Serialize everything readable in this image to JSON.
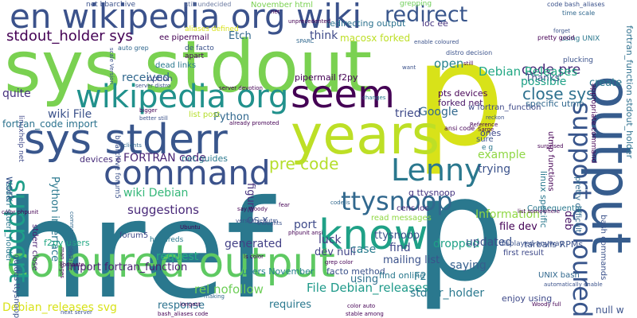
{
  "words": [
    {
      "text": "href",
      "color": "#2a788e"
    },
    {
      "text": "p",
      "color": "#d8e219"
    },
    {
      "text": "p",
      "color": "#2a788e"
    },
    {
      "text": "sys stdout",
      "color": "#7ad151"
    },
    {
      "text": "years",
      "color": "#bddf26"
    },
    {
      "text": "en wikipedia org wiki",
      "color": "#3b528b"
    },
    {
      "text": "output",
      "color": "#365c8d"
    },
    {
      "text": "coloured output",
      "color": "#5ec962"
    },
    {
      "text": "sys stderr",
      "color": "#39568c"
    },
    {
      "text": "command",
      "color": "#3b528b"
    },
    {
      "text": "wikipedia org",
      "color": "#21918c"
    },
    {
      "text": "seem",
      "color": "#440154"
    },
    {
      "text": "know",
      "color": "#1fa187"
    },
    {
      "text": "Lenny",
      "color": "#2a788e"
    },
    {
      "text": "support coloured",
      "color": "#39568c"
    },
    {
      "text": "ttysnoop",
      "color": "#31688e"
    },
    {
      "text": "redirect",
      "color": "#39568c"
    },
    {
      "text": "support",
      "color": "#1f9e89"
    },
    {
      "text": "stdout_holder sys",
      "color": "#440154"
    },
    {
      "text": "code pre",
      "color": "#482878"
    },
    {
      "text": "close sys",
      "color": "#2d708e"
    },
    {
      "text": "pre code",
      "color": "#b5de2b"
    },
    {
      "text": "Etch",
      "color": "#31688e"
    },
    {
      "text": "Debian Releases",
      "color": "#22a884"
    },
    {
      "text": "create",
      "color": "#2a788e"
    },
    {
      "text": "think",
      "color": "#3e4a89"
    },
    {
      "text": "received",
      "color": "#31688e"
    },
    {
      "text": "open",
      "color": "#26828e"
    },
    {
      "text": "Thanks",
      "color": "#3e4989"
    },
    {
      "text": "possible",
      "color": "#1fa187"
    },
    {
      "text": "pts devices",
      "color": "#440154"
    },
    {
      "text": "forked net",
      "color": "#471365"
    },
    {
      "text": "quite",
      "color": "#46327e"
    },
    {
      "text": "wiki File",
      "color": "#3b528b"
    },
    {
      "text": "Python",
      "color": "#31688e"
    },
    {
      "text": "fortran_code import",
      "color": "#2c728e"
    },
    {
      "text": "FORTRAN code",
      "color": "#482475"
    },
    {
      "text": "Google",
      "color": "#31688e"
    },
    {
      "text": "tried",
      "color": "#3e4989"
    },
    {
      "text": "wiki Debian",
      "color": "#35b779"
    },
    {
      "text": "suggestions",
      "color": "#482878"
    },
    {
      "text": "trying",
      "color": "#3b528b"
    },
    {
      "text": "example",
      "color": "#8fd744"
    },
    {
      "text": "Python interface",
      "color": "#2a788e"
    },
    {
      "text": "figure",
      "color": "#46327e"
    },
    {
      "text": "work",
      "color": "#39568c"
    },
    {
      "text": "devices e",
      "color": "#472d7b"
    },
    {
      "text": "generated",
      "color": "#424086"
    },
    {
      "text": "port",
      "color": "#3e4a89"
    },
    {
      "text": "luck",
      "color": "#443983"
    },
    {
      "text": "request",
      "color": "#26ad81"
    },
    {
      "text": "import fortran_function",
      "color": "#481f70"
    },
    {
      "text": "users November",
      "color": "#277f8e"
    },
    {
      "text": "facto method",
      "color": "#3b528b"
    },
    {
      "text": "rel nofollow",
      "color": "#6ece58"
    },
    {
      "text": "File Debian_releases",
      "color": "#1f9a8a"
    },
    {
      "text": "requires",
      "color": "#2a788e"
    },
    {
      "text": "response",
      "color": "#2c728e"
    },
    {
      "text": "Debian_releases svg",
      "color": "#d8e219"
    },
    {
      "text": "stderr_holder",
      "color": "#2a788e"
    },
    {
      "text": "dropped",
      "color": "#1fa187"
    },
    {
      "text": "saying",
      "color": "#355f8d"
    },
    {
      "text": "updated",
      "color": "#3b528b"
    },
    {
      "text": "Information",
      "color": "#8fd744"
    },
    {
      "text": "file dev",
      "color": "#450457"
    },
    {
      "text": "find",
      "color": "#3e4989"
    },
    {
      "text": "case",
      "color": "#287c8e"
    },
    {
      "text": "dev null",
      "color": "#414487"
    },
    {
      "text": "mailing list",
      "color": "#3b528b"
    },
    {
      "text": "find online",
      "color": "#2a788e"
    },
    {
      "text": "using",
      "color": "#2d708e"
    },
    {
      "text": "F2PY",
      "color": "#2a788e"
    },
    {
      "text": "null w",
      "color": "#3b528b"
    },
    {
      "text": "deb",
      "color": "#471365"
    },
    {
      "text": "ttysnoop",
      "color": "#3b528b"
    },
    {
      "text": "g ttysnoop",
      "color": "#453581"
    },
    {
      "text": "fortran_function stdout_holder",
      "color": "#2d708e"
    },
    {
      "text": "specific utmp",
      "color": "#31688e"
    },
    {
      "text": "w fortran_function",
      "color": "#3e4989"
    },
    {
      "text": "f2py users",
      "color": "#22a884"
    },
    {
      "text": "net guides",
      "color": "#2a788e"
    },
    {
      "text": "cens ioc",
      "color": "#482878"
    },
    {
      "text": "ioc ee",
      "color": "#46337f"
    },
    {
      "text": "macosx forked",
      "color": "#bddf26"
    },
    {
      "text": "redirecting output",
      "color": "#2c728e"
    },
    {
      "text": "pipermail f2py",
      "color": "#440154"
    },
    {
      "text": "OS X",
      "color": "#3b528b"
    },
    {
      "text": "tarballs RPMs",
      "color": "#3b528b"
    },
    {
      "text": "read messages",
      "color": "#8fd744"
    },
    {
      "text": "first result",
      "color": "#3e4989"
    },
    {
      "text": "displayed anyway",
      "color": "#3b528b"
    },
    {
      "text": "UNIX bash",
      "color": "#31688e"
    },
    {
      "text": "enjoy using",
      "color": "#3e4989"
    },
    {
      "text": "November html",
      "color": "#7ad151"
    },
    {
      "text": "ee pipermail",
      "color": "#440154"
    },
    {
      "text": "dead links",
      "color": "#2a788e"
    },
    {
      "text": "option",
      "color": "#3e4989"
    },
    {
      "text": "list post",
      "color": "#b5de2b"
    },
    {
      "text": "forum5",
      "color": "#3e4989"
    },
    {
      "text": "guides ttysnoop",
      "color": "#3b528b"
    },
    {
      "text": "stderr close",
      "color": "#481f70"
    },
    {
      "text": "stderr stderr_holder",
      "color": "#2a788e"
    },
    {
      "text": "linuxhelp net",
      "color": "#3e4989"
    },
    {
      "text": "bbarchive forum5",
      "color": "#3b528b"
    },
    {
      "text": "hundreds",
      "color": "#2a788e"
    },
    {
      "text": "sure",
      "color": "#3b528b"
    },
    {
      "text": "linux specific",
      "color": "#2a788e"
    },
    {
      "text": "pretty difficult",
      "color": "#31688e"
    },
    {
      "text": "utmp functions",
      "color": "#440154"
    },
    {
      "text": "bash commands",
      "color": "#3b528b"
    },
    {
      "text": "appropriate command",
      "color": "#440154"
    },
    {
      "text": "Consequently",
      "color": "#2a788e"
    },
    {
      "text": "net bbarchive",
      "color": "#3b528b"
    },
    {
      "text": "still undecided",
      "color": "#6b7aa0"
    },
    {
      "text": "grepping",
      "color": "#6ece58"
    },
    {
      "text": "code bash_aliases",
      "color": "#3b528b"
    },
    {
      "text": "time scale",
      "color": "#31688e"
    },
    {
      "text": "plucking",
      "color": "#3b528b"
    },
    {
      "text": "using UNIX",
      "color": "#2a788e"
    },
    {
      "text": "pretty good",
      "color": "#440154"
    },
    {
      "text": "distro decision",
      "color": "#3b528b"
    },
    {
      "text": "aliases defined",
      "color": "#d8e219"
    },
    {
      "text": "de facto",
      "color": "#3b528b"
    },
    {
      "text": "apart",
      "color": "#440154"
    },
    {
      "text": "auto grep",
      "color": "#31688e"
    },
    {
      "text": "unprecedented",
      "color": "#440154"
    },
    {
      "text": "enable coloured",
      "color": "#3b528b"
    },
    {
      "text": "SPARC",
      "color": "#31688e"
    },
    {
      "text": "still",
      "color": "#440154"
    },
    {
      "text": "server distro",
      "color": "#3b528b"
    },
    {
      "text": "server devotion",
      "color": "#440154"
    },
    {
      "text": "ones",
      "color": "#3e4989"
    },
    {
      "text": "e g",
      "color": "#2a788e"
    },
    {
      "text": "ansi code",
      "color": "#440154"
    },
    {
      "text": "already promoted",
      "color": "#440154"
    },
    {
      "text": "clients",
      "color": "#31688e"
    },
    {
      "text": "better still",
      "color": "#3b528b"
    },
    {
      "text": "bigger",
      "color": "#440154"
    },
    {
      "text": "changes",
      "color": "#2a788e"
    },
    {
      "text": "list somewhere",
      "color": "#440154"
    },
    {
      "text": "surprised",
      "color": "#440154"
    },
    {
      "text": "reckon",
      "color": "#3b528b"
    },
    {
      "text": "Reference",
      "color": "#440154"
    },
    {
      "text": "color phpunit",
      "color": "#440154"
    },
    {
      "text": "scale Version",
      "color": "#3b528b"
    },
    {
      "text": "want",
      "color": "#3b528b"
    },
    {
      "text": "Sarge",
      "color": "#440154"
    },
    {
      "text": "forget",
      "color": "#3b528b"
    },
    {
      "text": "net",
      "color": "#440154"
    },
    {
      "text": "compete",
      "color": "#440154"
    },
    {
      "text": "man pages",
      "color": "#440154"
    },
    {
      "text": "desktop",
      "color": "#3b528b"
    },
    {
      "text": "command names",
      "color": "#31688e"
    },
    {
      "text": "say Woody",
      "color": "#440154"
    },
    {
      "text": "fear",
      "color": "#440154"
    },
    {
      "text": "version Jeffutm",
      "color": "#3b528b"
    },
    {
      "text": "Ubuntu",
      "color": "#440154"
    },
    {
      "text": "thoughts",
      "color": "#3b528b"
    },
    {
      "text": "phpunit ansi",
      "color": "#440154"
    },
    {
      "text": "code is",
      "color": "#31688e"
    },
    {
      "text": "grep color",
      "color": "#440154"
    },
    {
      "text": "ls color",
      "color": "#440154"
    },
    {
      "text": "making",
      "color": "#31688e"
    },
    {
      "text": "longest",
      "color": "#440154"
    },
    {
      "text": "next server",
      "color": "#3b528b"
    },
    {
      "text": "bash_aliases code",
      "color": "#440154"
    },
    {
      "text": "stable among",
      "color": "#440154"
    },
    {
      "text": "color auto",
      "color": "#440154"
    },
    {
      "text": "Woody full",
      "color": "#440154"
    },
    {
      "text": "automatically enable",
      "color": "#3b528b"
    }
  ]
}
